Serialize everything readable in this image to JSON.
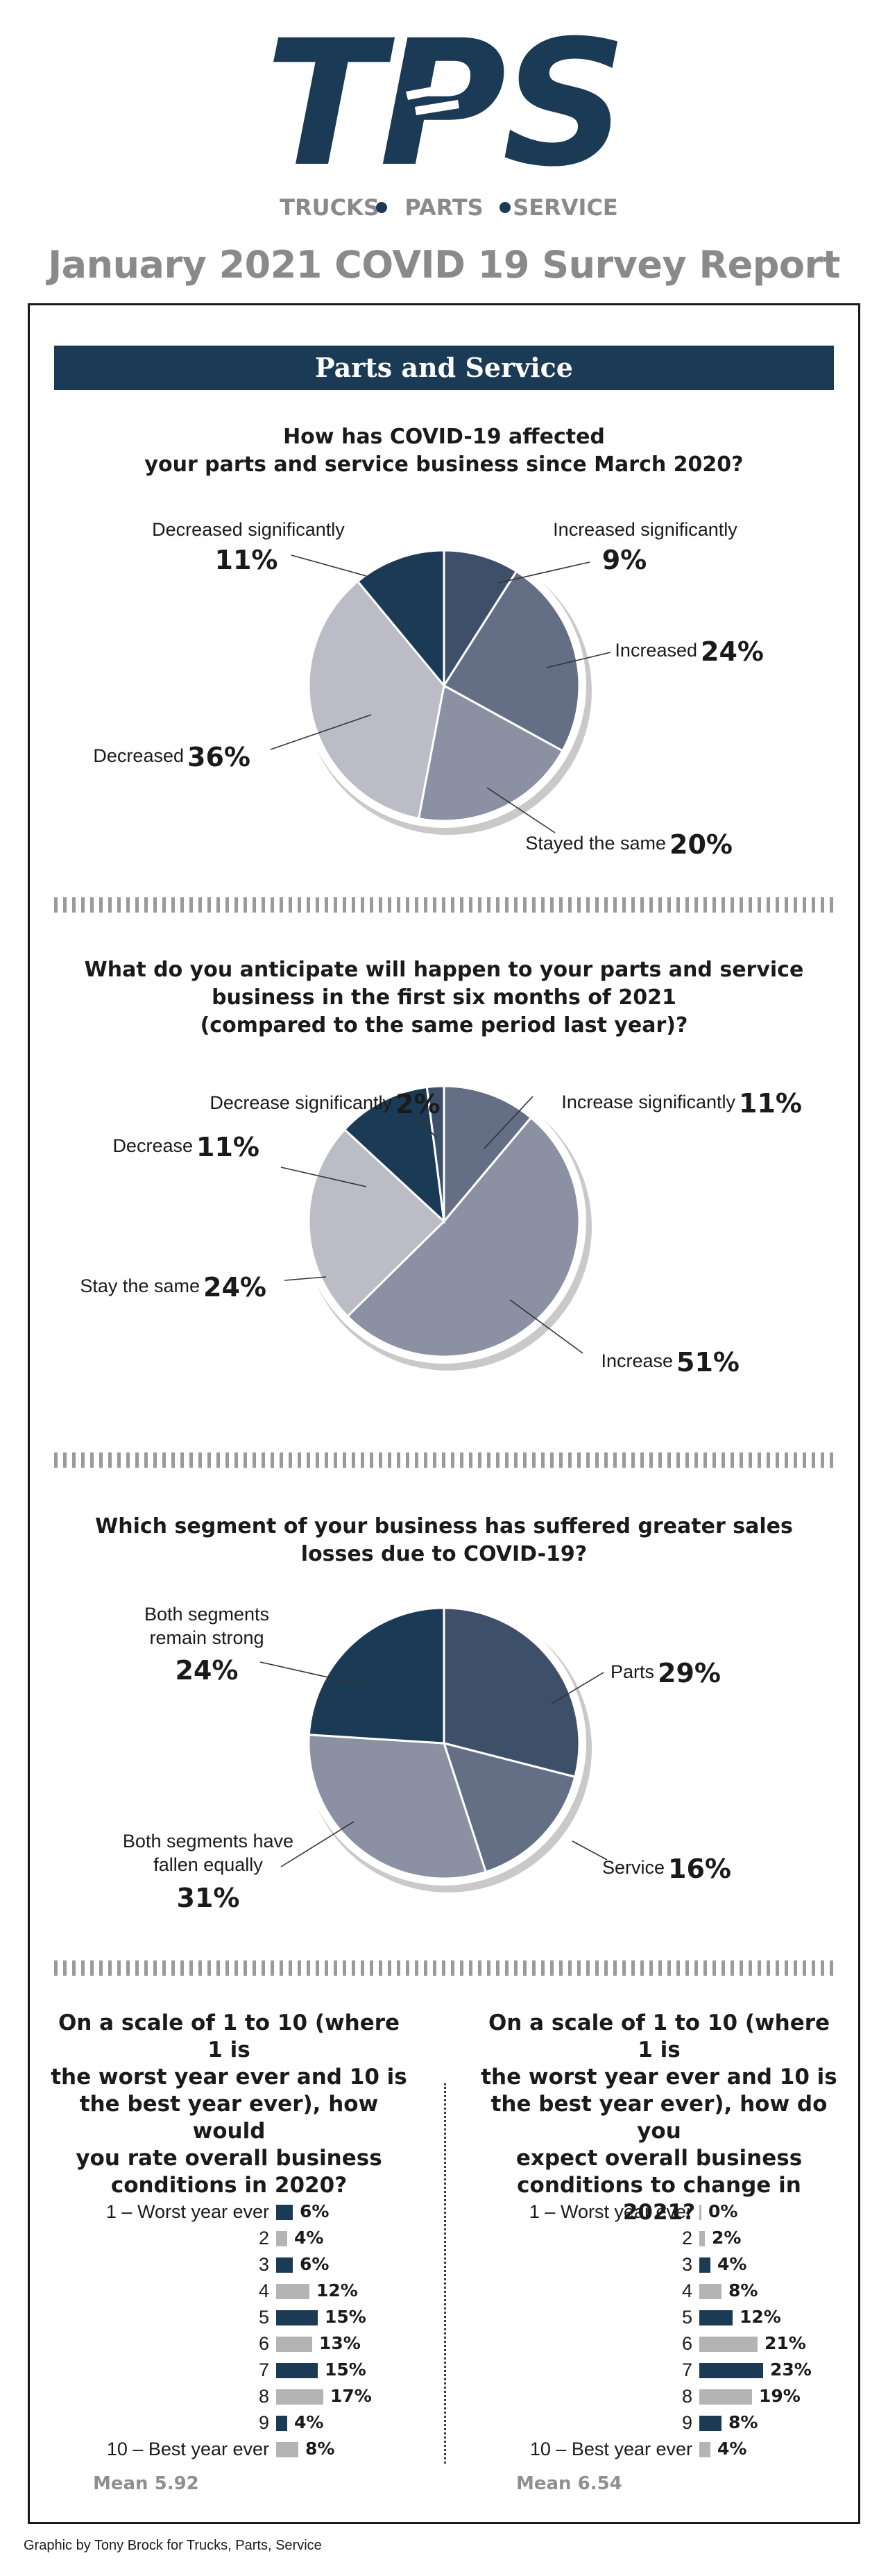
{
  "header": {
    "brand_mark": "TPS",
    "tagline_1": "TRUCKS",
    "tagline_2": "PARTS",
    "tagline_3": "SERVICE",
    "report_title": "January 2021 COVID 19 Survey Report"
  },
  "section_title": "Parts and Service",
  "colors": {
    "navy": "#1b3a55",
    "slate": "#3e4f69",
    "steel": "#646e85",
    "gray_blue": "#8b91a3",
    "light_gray": "#bcbcc6",
    "bar_gray": "#b4b4b4",
    "title_gray": "#8a8a8a"
  },
  "chart_data": [
    {
      "type": "pie",
      "title_lines": [
        "How has COVID-19 affected",
        "your parts and service business since March 2020?"
      ],
      "unit": "%",
      "slices": [
        {
          "label": "Increased significantly",
          "value": 9,
          "color": "#3e4f69"
        },
        {
          "label": "Increased",
          "value": 24,
          "color": "#646e85"
        },
        {
          "label": "Stayed the same",
          "value": 20,
          "color": "#8b91a3"
        },
        {
          "label": "Decreased",
          "value": 36,
          "color": "#bcbcc6"
        },
        {
          "label": "Decreased significantly",
          "value": 11,
          "color": "#1b3a55"
        }
      ]
    },
    {
      "type": "pie",
      "title_lines": [
        "What do you anticipate will happen to your parts and service",
        "business in the first six months of 2021",
        "(compared to the same period last year)?"
      ],
      "unit": "%",
      "slices": [
        {
          "label": "Increase significantly",
          "value": 11,
          "color": "#646e85"
        },
        {
          "label": "Increase",
          "value": 51,
          "color": "#8b91a3"
        },
        {
          "label": "Stay the same",
          "value": 24,
          "color": "#bcbcc6"
        },
        {
          "label": "Decrease",
          "value": 11,
          "color": "#1b3a55"
        },
        {
          "label": "Decrease significantly",
          "value": 2,
          "color": "#3e4f69"
        }
      ]
    },
    {
      "type": "pie",
      "title_lines": [
        "Which segment of your business has suffered greater sales",
        "losses due to COVID-19?"
      ],
      "unit": "%",
      "slices": [
        {
          "label": "Parts",
          "value": 29,
          "color": "#3e4f69"
        },
        {
          "label": "Service",
          "value": 16,
          "color": "#646e85"
        },
        {
          "label": "Both segments have fallen equally",
          "value": 31,
          "color": "#8b91a3"
        },
        {
          "label": "Both segments remain strong",
          "value": 24,
          "color": "#1b3a55"
        }
      ]
    },
    {
      "type": "bar",
      "orientation": "horizontal",
      "title_lines": [
        "On a scale of 1 to 10 (where 1 is",
        "the worst year ever and 10 is",
        "the best year ever), how would",
        "you rate overall business",
        "conditions in 2020?"
      ],
      "categories": [
        "1 – Worst year ever",
        "2",
        "3",
        "4",
        "5",
        "6",
        "7",
        "8",
        "9",
        "10 – Best year ever"
      ],
      "values": [
        6,
        4,
        6,
        12,
        15,
        13,
        15,
        17,
        4,
        8
      ],
      "unit": "%",
      "bar_colors": [
        "#1b3a55",
        "#b4b4b4",
        "#1b3a55",
        "#b4b4b4",
        "#1b3a55",
        "#b4b4b4",
        "#1b3a55",
        "#b4b4b4",
        "#1b3a55",
        "#b4b4b4"
      ],
      "mean_label": "Mean 5.92"
    },
    {
      "type": "bar",
      "orientation": "horizontal",
      "title_lines": [
        "On a scale of 1 to 10 (where 1 is",
        "the worst year ever and 10 is",
        "the best year ever), how do you",
        "expect overall business",
        "conditions to change in 2021?"
      ],
      "categories": [
        "1 – Worst year ever",
        "2",
        "3",
        "4",
        "5",
        "6",
        "7",
        "8",
        "9",
        "10 – Best year ever"
      ],
      "values": [
        0,
        2,
        4,
        8,
        12,
        21,
        23,
        19,
        8,
        4
      ],
      "unit": "%",
      "bar_colors": [
        "#b4b4b4",
        "#b4b4b4",
        "#1b3a55",
        "#b4b4b4",
        "#1b3a55",
        "#b4b4b4",
        "#1b3a55",
        "#b4b4b4",
        "#1b3a55",
        "#b4b4b4"
      ],
      "mean_label": "Mean 6.54"
    }
  ],
  "credit": "Graphic by Tony Brock for Trucks, Parts, Service"
}
